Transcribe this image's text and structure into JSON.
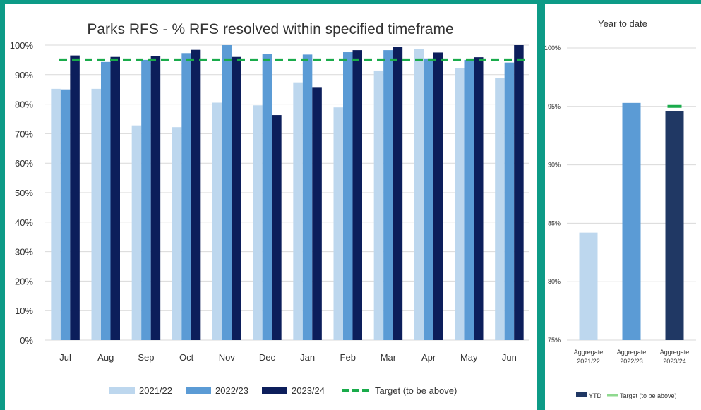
{
  "colors": {
    "frame": "#0d9b87",
    "y2122": "#bdd7ee",
    "y2223": "#5b9bd5",
    "y2324": "#0c1e5b",
    "ytd_2324": "#203864",
    "target": "#1aab4b",
    "target_light": "#8fd98f",
    "grid": "#d9d9d9"
  },
  "chart_data": [
    {
      "type": "bar",
      "title": "Parks RFS - % RFS resolved within specified timeframe",
      "categories": [
        "Jul",
        "Aug",
        "Sep",
        "Oct",
        "Nov",
        "Dec",
        "Jan",
        "Feb",
        "Mar",
        "Apr",
        "May",
        "Jun"
      ],
      "series": [
        {
          "name": "2021/22",
          "color_key": "y2122",
          "values": [
            85.2,
            85.2,
            72.8,
            72.2,
            80.5,
            79.6,
            87.4,
            78.9,
            91.4,
            98.6,
            92.3,
            88.9
          ]
        },
        {
          "name": "2022/23",
          "color_key": "y2223",
          "values": [
            85.0,
            94.3,
            95.0,
            97.3,
            100.0,
            97.0,
            96.8,
            97.6,
            98.3,
            95.5,
            95.0,
            94.1
          ]
        },
        {
          "name": "2023/24",
          "color_key": "y2324",
          "values": [
            96.5,
            96.0,
            96.2,
            98.4,
            96.0,
            76.3,
            85.8,
            98.3,
            99.5,
            97.5,
            95.9,
            100.0
          ]
        }
      ],
      "target": {
        "name": "Target (to be above)",
        "value": 95
      },
      "yticks": [
        "0%",
        "10%",
        "20%",
        "30%",
        "40%",
        "50%",
        "60%",
        "70%",
        "80%",
        "90%",
        "100%"
      ],
      "ylim": [
        0,
        100
      ],
      "grid": true,
      "legend_position": "bottom"
    },
    {
      "type": "bar",
      "title": "Year to date",
      "categories": [
        "Aggregate 2021/22",
        "Aggregate 2022/23",
        "Aggregate 2023/24"
      ],
      "category_lines": [
        [
          "Aggregate",
          "2021/22"
        ],
        [
          "Aggregate",
          "2022/23"
        ],
        [
          "Aggregate",
          "2023/24"
        ]
      ],
      "values": [
        84.2,
        95.3,
        94.6
      ],
      "color_keys": [
        "y2122",
        "y2223",
        "ytd_2324"
      ],
      "target": {
        "name": "Target (to be above)",
        "value": 95
      },
      "yticks": [
        "75%",
        "80%",
        "85%",
        "90%",
        "95%",
        "100%"
      ],
      "ylim": [
        75,
        100
      ],
      "grid": true,
      "legend": [
        "YTD",
        "Target (to be above)"
      ],
      "legend_position": "bottom"
    }
  ]
}
